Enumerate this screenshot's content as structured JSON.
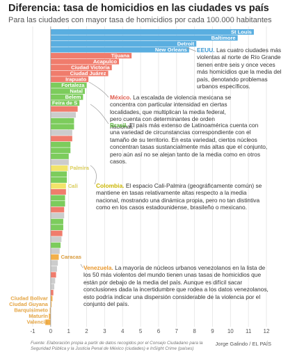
{
  "chart_data": {
    "type": "bar",
    "orientation": "horizontal",
    "title": "Diferencia: tasa de homicidios en las ciudades vs país",
    "subtitle": "Para las ciudades con mayor tasa de homicidios por cada 100.000 habitantes",
    "categories": [
      "St Louis",
      "Baltimore",
      "Detroit",
      "New Orleans",
      "Tijuana",
      "Acapulco",
      "Ciudad Victoria",
      "Ciudad Juárez",
      "Irapuato",
      "Fortaleza",
      "Natal",
      "Belem",
      "Feira de S",
      null,
      null,
      null,
      null,
      null,
      null,
      null,
      null,
      null,
      null,
      "Palmira",
      null,
      null,
      "Cali",
      null,
      null,
      null,
      null,
      null,
      null,
      null,
      null,
      null,
      null,
      null,
      "Caracas",
      null,
      null,
      null,
      null,
      null,
      null,
      "Ciudad Bolivar",
      "Ciudad Guyana",
      "Barquisimeto",
      "Maturín",
      "Valencia"
    ],
    "values": [
      11.3,
      10.4,
      8.1,
      7.7,
      4.5,
      3.8,
      3.4,
      3.2,
      2.1,
      2.0,
      1.9,
      1.8,
      1.6,
      1.5,
      1.4,
      1.3,
      1.3,
      1.2,
      1.2,
      1.1,
      1.1,
      1.0,
      1.0,
      0.95,
      0.9,
      0.9,
      0.85,
      0.85,
      0.8,
      0.8,
      0.75,
      0.75,
      0.7,
      0.7,
      0.65,
      0.6,
      0.55,
      0.5,
      0.45,
      0.4,
      0.35,
      0.3,
      0.25,
      0.2,
      0.15,
      0.1,
      0.05,
      -0.05,
      -0.1,
      -0.3
    ],
    "colors": [
      "#5aaee0",
      "#5aaee0",
      "#5aaee0",
      "#5aaee0",
      "#f07c6c",
      "#f07c6c",
      "#f07c6c",
      "#f07c6c",
      "#f07c6c",
      "#7ccc5c",
      "#7ccc5c",
      "#7ccc5c",
      "#7ccc5c",
      "#f07c6c",
      "#cccccc",
      "#7ccc5c",
      "#7ccc5c",
      "#cccccc",
      "#f07c6c",
      "#7ccc5c",
      "#7ccc5c",
      "#7ccc5c",
      "#cccccc",
      "#f2e46a",
      "#7ccc5c",
      "#7ccc5c",
      "#f2e46a",
      "#f07c6c",
      "#7ccc5c",
      "#7ccc5c",
      "#f07c6c",
      "#cccccc",
      "#7ccc5c",
      "#7ccc5c",
      "#f07c6c",
      "#cccccc",
      "#7ccc5c",
      "#cccccc",
      "#f3b04a",
      "#cccccc",
      "#cccccc",
      "#f07c6c",
      "#cccccc",
      "#cccccc",
      "#f07c6c",
      "#f3b04a",
      "#f3b04a",
      "#f3b04a",
      "#f3b04a",
      "#f3b04a"
    ],
    "xlim": [
      -1,
      12
    ],
    "xticks": [
      -1,
      0,
      1,
      2,
      3,
      4,
      5,
      6,
      7,
      8,
      9,
      10,
      11,
      12
    ],
    "grid": true,
    "annotations": [
      {
        "country": "EEUU.",
        "color": "#3a96d0",
        "text": "Las cuatro ciudades más violentas al norte de Río Grande tienen entre seis y once veces más homicidios que la media del país, denotando problemas urbanos específicos."
      },
      {
        "country": "México.",
        "color": "#e0584a",
        "text": "La escalada de violencia mexicana se concentra con particular intensidad en ciertas localidades, que multiplican la media federal, pero cuenta con determinantes de orden nacional."
      },
      {
        "country": "Brasil.",
        "color": "#5cb83c",
        "text": "El país más extenso de Latinoamérica cuenta con una variedad de circunstancias correspondiente con el tamaño de su territorio. En esta variedad, ciertos núcleos concentran tasas sustancialmente más altas que el conjunto, pero aún así no se alejan tanto de la media como en otros casos."
      },
      {
        "country": "Colombia.",
        "color": "#c9b400",
        "text": "El espacio Cali-Palmira (geográficamente común) se mantiene en tasas relativamente altas respecto a la media nacional, mostrando una dinámica propia, pero no tan distintiva como en los casos estadounidense, brasileño o mexicano."
      },
      {
        "country": "Venezuela.",
        "color": "#e8962a",
        "text": "La mayoría de núcleos urbanos venezolanos en la lista de los 50 más violentos del mundo tienen unas tasas de homicidios que están por debajo de la media del país. Aunque es difícil sacar conclusiones dada la incertidumbre que rodea a los datos venezolanos, esto podría indicar una dispersión considerable de la violencia por el conjunto del país."
      }
    ],
    "source": "Fuente: Elaboración propia a partir de datos recogidos por el Consejo Ciudadano para la Seguridad Pública y la Justicia Penal de México (ciudades) e InSight Crime (países)",
    "credit": "Jorge Galindo / EL PAÍS"
  }
}
